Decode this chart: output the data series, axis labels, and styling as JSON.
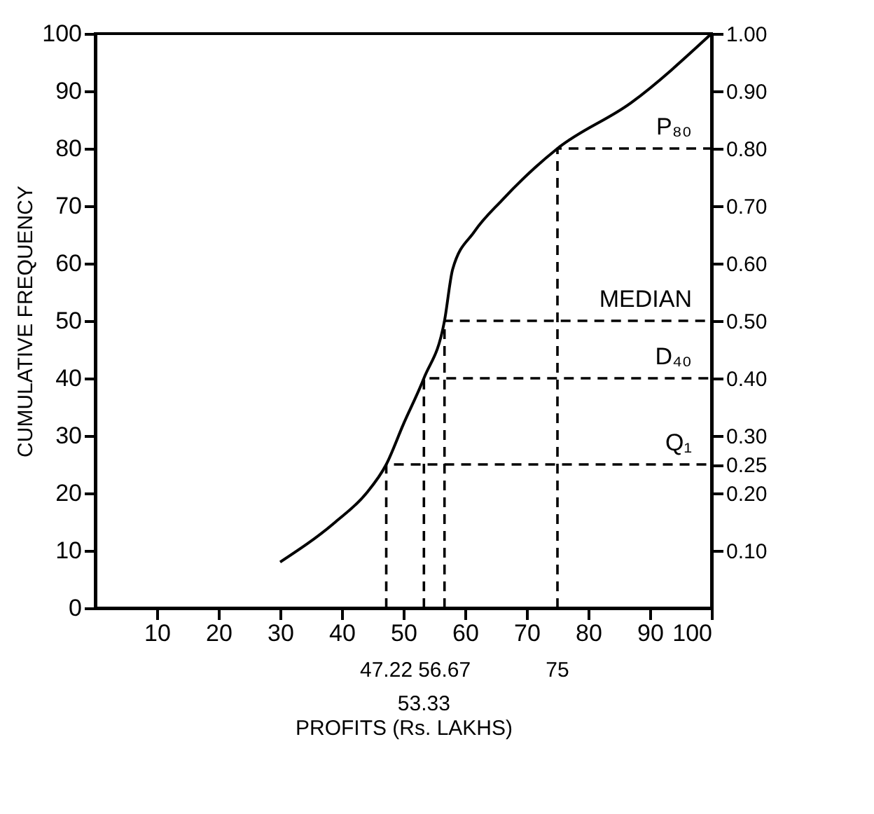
{
  "chart_data": {
    "type": "line",
    "xlabel": "PROFITS (Rs. LAKHS)",
    "ylabel": "CUMULATIVE FREQUENCY",
    "xlim": [
      0,
      100
    ],
    "ylim": [
      0,
      100
    ],
    "xticks": [
      10,
      20,
      30,
      40,
      50,
      60,
      70,
      80,
      90,
      100
    ],
    "annotations": [
      "47.22",
      "53.33",
      "56.67",
      "75"
    ],
    "yticks": [
      0,
      10,
      20,
      30,
      40,
      50,
      60,
      70,
      80,
      90,
      100
    ],
    "y2lim": [
      0,
      1
    ],
    "y2ticks": [
      {
        "value": 0.1,
        "label": "0.10"
      },
      {
        "value": 0.2,
        "label": "0.20"
      },
      {
        "value": 0.25,
        "label": "0.25"
      },
      {
        "value": 0.3,
        "label": "0.30"
      },
      {
        "value": 0.4,
        "label": "0.40"
      },
      {
        "value": 0.5,
        "label": "0.50"
      },
      {
        "value": 0.6,
        "label": "0.60"
      },
      {
        "value": 0.7,
        "label": "0.70"
      },
      {
        "value": 0.8,
        "label": "0.80"
      },
      {
        "value": 0.9,
        "label": "0.90"
      },
      {
        "value": 1.0,
        "label": "1.00"
      }
    ],
    "grid": false,
    "legend": false,
    "marker": "none",
    "series": [
      {
        "color": "#000000",
        "line_style": "solid",
        "x": [
          30,
          39,
          44,
          47.22,
          50,
          53.33,
          56.67,
          58,
          61.5,
          66,
          75,
          87,
          100
        ],
        "values": [
          8,
          15,
          20,
          25,
          32,
          40,
          50,
          59,
          65.5,
          71,
          80,
          88,
          100
        ]
      },
      {
        "name": "Q₁",
        "color": "#000000",
        "line_style": "dashed",
        "x": [
          47.22,
          47.22,
          100
        ],
        "values": [
          0,
          25,
          25
        ]
      },
      {
        "name": "D₄₀",
        "color": "#000000",
        "line_style": "dashed",
        "x": [
          53.33,
          53.33,
          100
        ],
        "values": [
          0,
          40,
          40
        ]
      },
      {
        "name": "MEDIAN",
        "color": "#000000",
        "line_style": "dashed",
        "x": [
          56.67,
          56.67,
          100
        ],
        "values": [
          0,
          50,
          50
        ]
      },
      {
        "name": "P₈₀",
        "color": "#000000",
        "line_style": "dashed",
        "x": [
          75,
          75,
          100
        ],
        "values": [
          0,
          80,
          80
        ]
      }
    ]
  }
}
